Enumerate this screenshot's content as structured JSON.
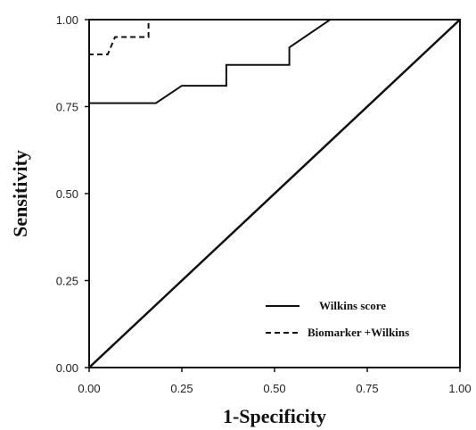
{
  "chart_data": {
    "type": "line",
    "title": "",
    "xlabel": "1-Specificity",
    "ylabel": "Sensitivity",
    "xlim": [
      0,
      1
    ],
    "ylim": [
      0,
      1
    ],
    "x_ticks": [
      "0.00",
      "0.25",
      "0.50",
      "0.75",
      "1.00"
    ],
    "y_ticks": [
      "0.00",
      "0.25",
      "0.50",
      "0.75",
      "1.00"
    ],
    "grid": false,
    "legend_position": "bottom-right",
    "series": [
      {
        "name": "Wilkins score",
        "style": "solid",
        "color": "#111111",
        "x": [
          0.0,
          0.0,
          0.18,
          0.25,
          0.25,
          0.37,
          0.37,
          0.54,
          0.54,
          0.65,
          1.0
        ],
        "y": [
          0.0,
          0.76,
          0.76,
          0.81,
          0.81,
          0.81,
          0.87,
          0.87,
          0.92,
          1.0,
          1.0
        ]
      },
      {
        "name": "Biomarker +Wilkins",
        "style": "dashed",
        "color": "#111111",
        "x": [
          0.0,
          0.0,
          0.05,
          0.07,
          0.16,
          0.16
        ],
        "y": [
          0.0,
          0.9,
          0.9,
          0.95,
          0.95,
          1.0
        ]
      },
      {
        "name": "",
        "style": "solid",
        "color": "#111111",
        "x": [
          0,
          1
        ],
        "y": [
          0,
          1
        ]
      }
    ]
  }
}
